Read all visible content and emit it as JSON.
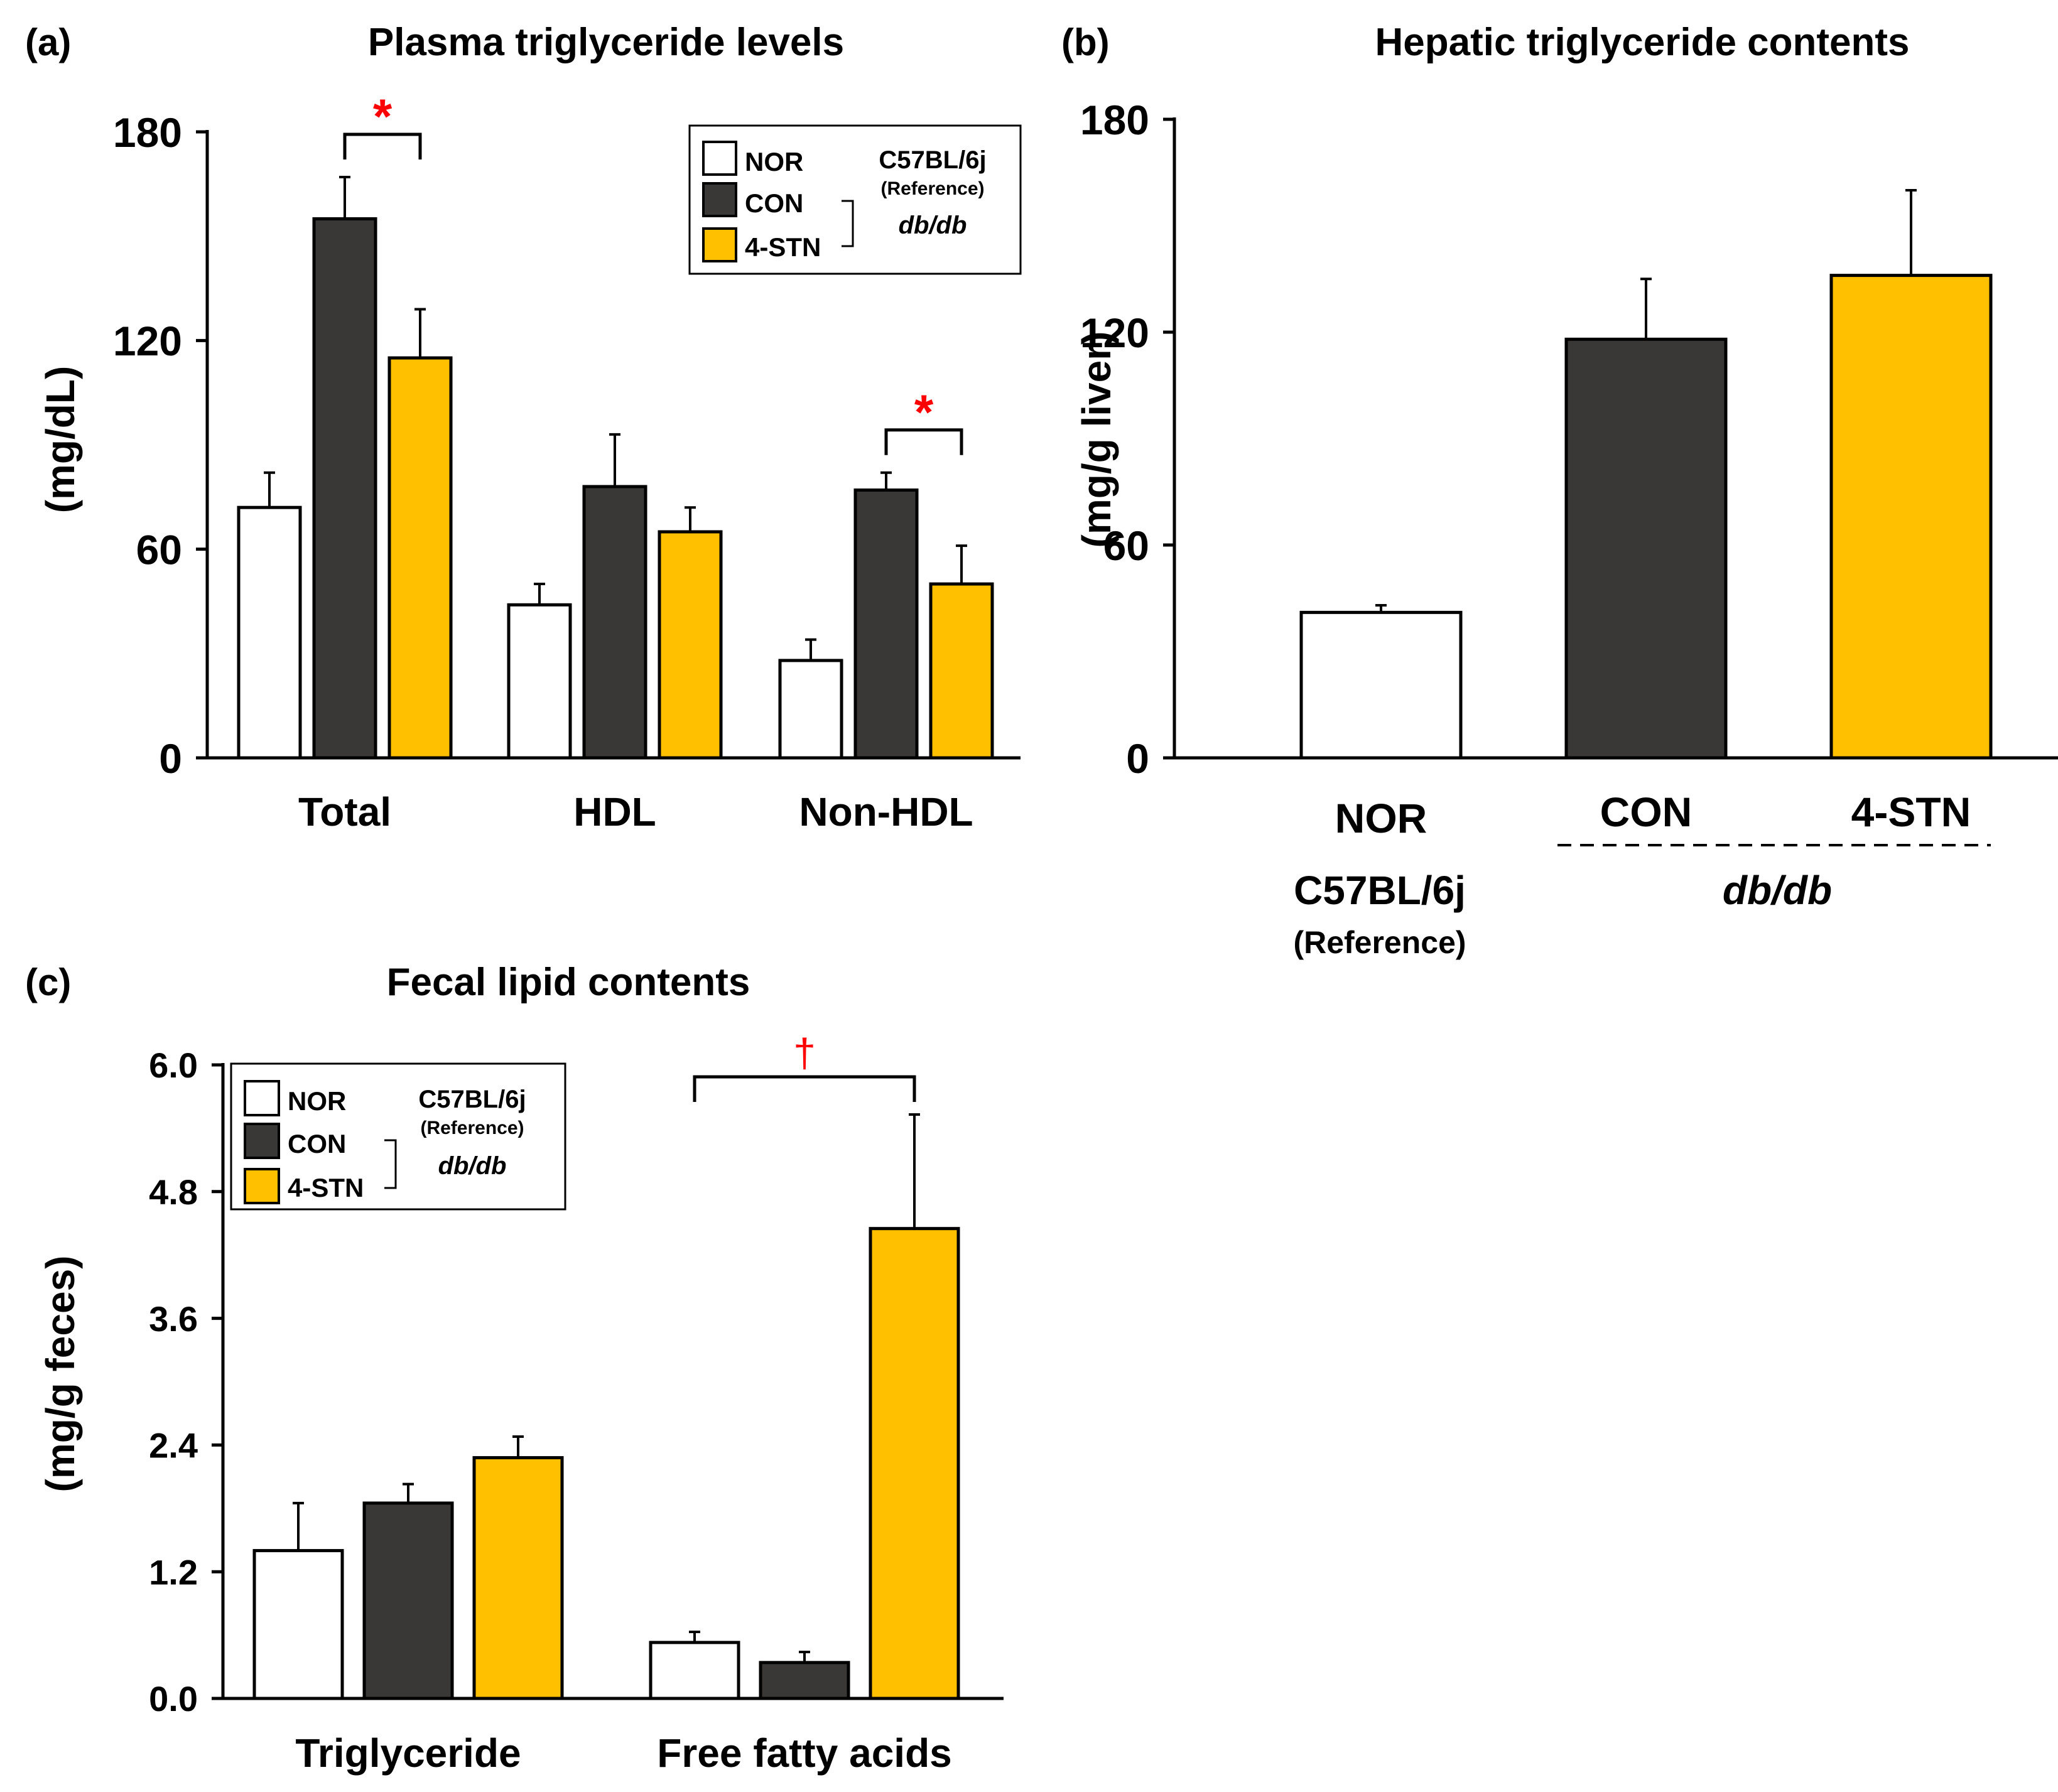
{
  "colors": {
    "NOR": "#ffffff",
    "CON": "#3a3836",
    "4-STN": "#ffc000",
    "sig": "#ff0000"
  },
  "legend": {
    "groups": [
      "NOR",
      "CON",
      "4-STN"
    ],
    "strain1": "C57BL/6j",
    "strain1_note": "(Reference)",
    "strain2": "db/db"
  },
  "chart_data": [
    {
      "id": "a",
      "type": "bar",
      "panel_label": "(a)",
      "title": "Plasma triglyceride levels",
      "ylabel": "(mg/dL)",
      "ylim": [
        0,
        180
      ],
      "yticks": [
        "0",
        "60",
        "120",
        "180"
      ],
      "categories": [
        "Total",
        "HDL",
        "Non-HDL"
      ],
      "series": [
        {
          "name": "NOR",
          "values": [
            72,
            44,
            28
          ],
          "errors": [
            10,
            6,
            6
          ]
        },
        {
          "name": "CON",
          "values": [
            155,
            78,
            77
          ],
          "errors": [
            12,
            15,
            5
          ]
        },
        {
          "name": "4-STN",
          "values": [
            115,
            65,
            50
          ],
          "errors": [
            14,
            7,
            11
          ]
        }
      ],
      "annotations": [
        {
          "symbol": "*",
          "category": "Total",
          "between": [
            "CON",
            "4-STN"
          ]
        },
        {
          "symbol": "*",
          "category": "Non-HDL",
          "between": [
            "CON",
            "4-STN"
          ]
        }
      ]
    },
    {
      "id": "b",
      "type": "bar",
      "panel_label": "(b)",
      "title": "Hepatic triglyceride contents",
      "ylabel": "(mg/g liver)",
      "ylim": [
        0,
        180
      ],
      "yticks": [
        "0",
        "60",
        "120",
        "180"
      ],
      "categories": [
        "NOR",
        "CON",
        "4-STN"
      ],
      "values": [
        41,
        118,
        136
      ],
      "errors": [
        2,
        17,
        24
      ],
      "group_labels": {
        "left": "C57BL/6j",
        "left_note": "(Reference)",
        "right": "db/db"
      }
    },
    {
      "id": "c",
      "type": "bar",
      "panel_label": "(c)",
      "title": "Fecal lipid contents",
      "ylabel": "(mg/g feces)",
      "ylim": [
        0,
        6.0
      ],
      "yticks": [
        "0.0",
        "1.2",
        "2.4",
        "3.6",
        "4.8",
        "6.0"
      ],
      "categories": [
        "Triglyceride",
        "Free fatty acids"
      ],
      "series": [
        {
          "name": "NOR",
          "values": [
            1.4,
            0.53
          ],
          "errors": [
            0.45,
            0.1
          ]
        },
        {
          "name": "CON",
          "values": [
            1.85,
            0.34
          ],
          "errors": [
            0.18,
            0.1
          ]
        },
        {
          "name": "4-STN",
          "values": [
            2.28,
            4.45
          ],
          "errors": [
            0.2,
            1.08
          ]
        }
      ],
      "annotations": [
        {
          "symbol": "†",
          "category": "Free fatty acids",
          "between": [
            "NOR",
            "4-STN"
          ]
        }
      ]
    }
  ]
}
